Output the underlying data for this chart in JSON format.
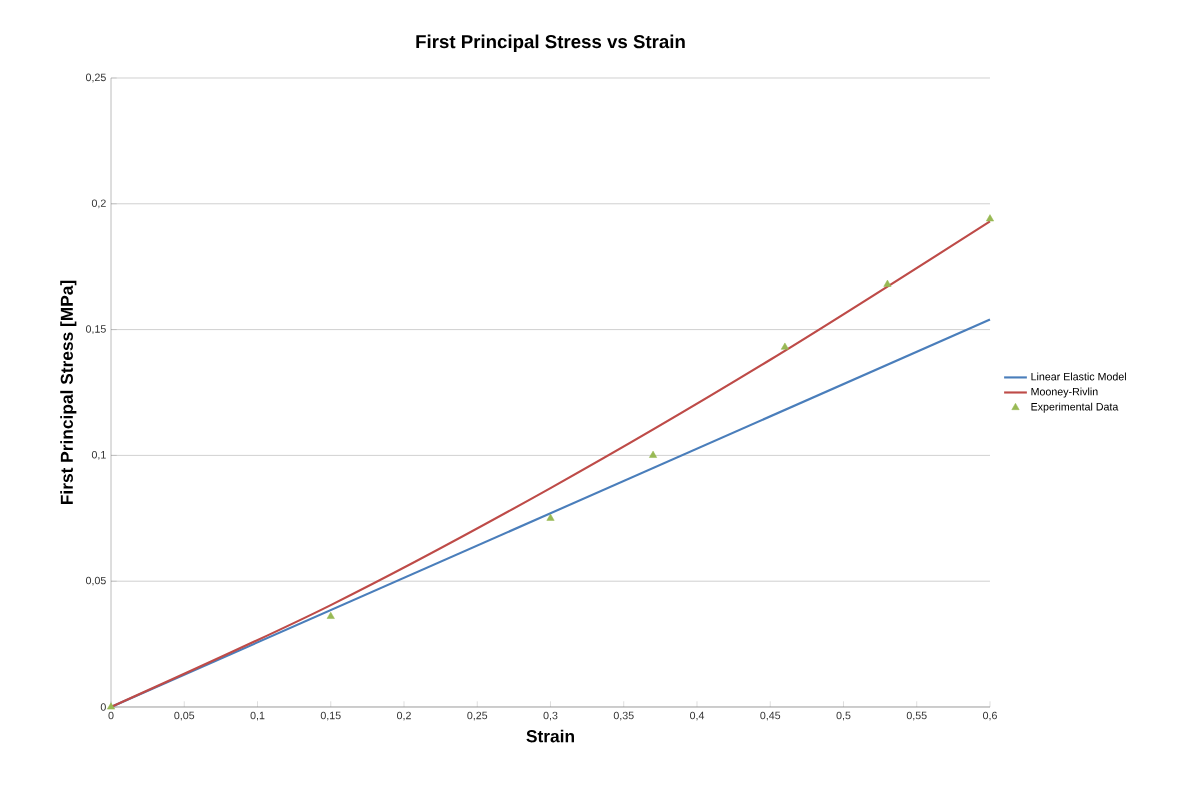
{
  "chart_data": {
    "type": "line",
    "title": "First Principal Stress vs Strain",
    "xlabel": "Strain",
    "ylabel": "First Principal Stress [MPa]",
    "xlim": [
      0,
      0.6
    ],
    "ylim": [
      0,
      0.25
    ],
    "xticks": [
      0,
      {
        "value": 0.05,
        "label": "0,05"
      },
      {
        "value": 0.1,
        "label": "0,1"
      },
      {
        "value": 0.15,
        "label": "0,15"
      },
      {
        "value": 0.2,
        "label": "0,2"
      },
      {
        "value": 0.25,
        "label": "0,25"
      },
      {
        "value": 0.3,
        "label": "0,3"
      },
      {
        "value": 0.35,
        "label": "0,35"
      },
      {
        "value": 0.4,
        "label": "0,4"
      },
      {
        "value": 0.45,
        "label": "0,45"
      },
      {
        "value": 0.5,
        "label": "0,5"
      },
      {
        "value": 0.55,
        "label": "0,55"
      },
      {
        "value": 0.6,
        "label": "0,6"
      }
    ],
    "yticks": [
      0,
      {
        "value": 0.05,
        "label": "0,05"
      },
      {
        "value": 0.1,
        "label": "0,1"
      },
      {
        "value": 0.15,
        "label": "0,15"
      },
      {
        "value": 0.2,
        "label": "0,2"
      },
      {
        "value": 0.25,
        "label": "0,25"
      }
    ],
    "grid": "y",
    "legend": "right",
    "series": [
      {
        "name": "Linear Elastic Model",
        "color": "#4a7ebb",
        "x": [
          0,
          0.6
        ],
        "values": [
          0,
          0.154
        ]
      },
      {
        "name": "Mooney-Rivlin",
        "color": "#be4b48",
        "x": [
          0,
          0.15,
          0.3,
          0.45,
          0.6
        ],
        "values": [
          0,
          0.0405,
          0.087,
          0.138,
          0.193
        ]
      },
      {
        "name": "Experimental Data",
        "type": "scatter",
        "marker": "triangle",
        "color": "#98b954",
        "x": [
          0,
          0.15,
          0.3,
          0.37,
          0.46,
          0.53,
          0.6
        ],
        "values": [
          0,
          0.036,
          0.075,
          0.1,
          0.143,
          0.168,
          0.194
        ]
      }
    ]
  }
}
